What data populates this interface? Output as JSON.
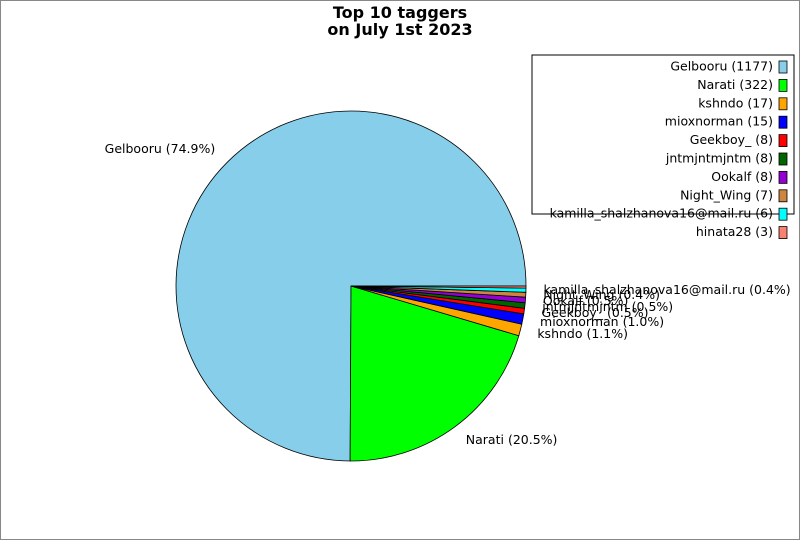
{
  "chart_data": {
    "type": "pie",
    "title": "Top 10 taggers\non July 1st 2023",
    "labels": [
      "Gelbooru",
      "Narati",
      "kshndo",
      "mioxnorman",
      "Geekboy_",
      "jntmjntmjntm",
      "Ookalf",
      "Night_Wing",
      "kamilla_shalzhanova16@mail.ru",
      "hinata28"
    ],
    "values": [
      1177,
      322,
      17,
      15,
      8,
      8,
      8,
      7,
      6,
      3
    ],
    "legend_labels": [
      "Gelbooru (1177)",
      "Narati (322)",
      "kshndo (17)",
      "mioxnorman (15)",
      "Geekboy_ (8)",
      "jntmjntmjntm (8)",
      "Ookalf (8)",
      "Night_Wing (7)",
      "kamilla_shalzhanova16@mail.ru (6)",
      "hinata28 (3)"
    ],
    "value_labels": [
      "Gelbooru (74.9%)",
      "Narati (20.5%)",
      "kshndo (1.1%)",
      "mioxnorman (1.0%)",
      "Geekboy_ (0.5%)",
      "jntmjntmjntm (0.5%)",
      "Ookalf (0.5%)",
      "Night_Wing (0.4%)",
      "kamilla_shalzhanova16@mail.ru (0.4%)",
      null
    ],
    "colors": [
      "#87ceeb",
      "#00ff00",
      "#ffa500",
      "#0000ff",
      "#ff0000",
      "#006400",
      "#9400d3",
      "#cd853f",
      "#00ffff",
      "#fa8072"
    ],
    "legend_position": "upper right"
  }
}
